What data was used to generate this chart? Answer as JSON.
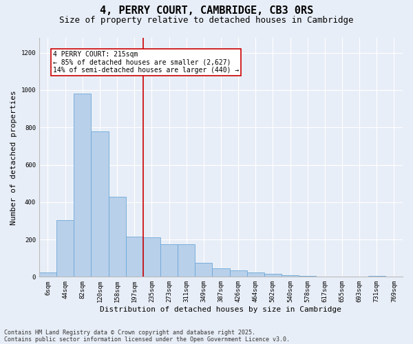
{
  "title": "4, PERRY COURT, CAMBRIDGE, CB3 0RS",
  "subtitle": "Size of property relative to detached houses in Cambridge",
  "xlabel": "Distribution of detached houses by size in Cambridge",
  "ylabel": "Number of detached properties",
  "categories": [
    "6sqm",
    "44sqm",
    "82sqm",
    "120sqm",
    "158sqm",
    "197sqm",
    "235sqm",
    "273sqm",
    "311sqm",
    "349sqm",
    "387sqm",
    "426sqm",
    "464sqm",
    "502sqm",
    "540sqm",
    "578sqm",
    "617sqm",
    "655sqm",
    "693sqm",
    "731sqm",
    "769sqm"
  ],
  "values": [
    25,
    305,
    980,
    780,
    430,
    215,
    210,
    175,
    175,
    75,
    45,
    35,
    25,
    15,
    10,
    5,
    0,
    0,
    0,
    5,
    0
  ],
  "bar_color": "#b8d0ea",
  "bar_edgecolor": "#6ea8d8",
  "vline_x": 5.5,
  "vline_color": "#cc0000",
  "annotation_text": "4 PERRY COURT: 215sqm\n← 85% of detached houses are smaller (2,627)\n14% of semi-detached houses are larger (440) →",
  "box_color": "#cc0000",
  "ylim": [
    0,
    1280
  ],
  "yticks": [
    0,
    200,
    400,
    600,
    800,
    1000,
    1200
  ],
  "footer1": "Contains HM Land Registry data © Crown copyright and database right 2025.",
  "footer2": "Contains public sector information licensed under the Open Government Licence v3.0.",
  "bg_color": "#e8eef7",
  "plot_bg_color": "#e8eef7",
  "title_fontsize": 11,
  "subtitle_fontsize": 9,
  "tick_fontsize": 6.5,
  "ylabel_fontsize": 8,
  "xlabel_fontsize": 8,
  "footer_fontsize": 6,
  "annot_fontsize": 7
}
